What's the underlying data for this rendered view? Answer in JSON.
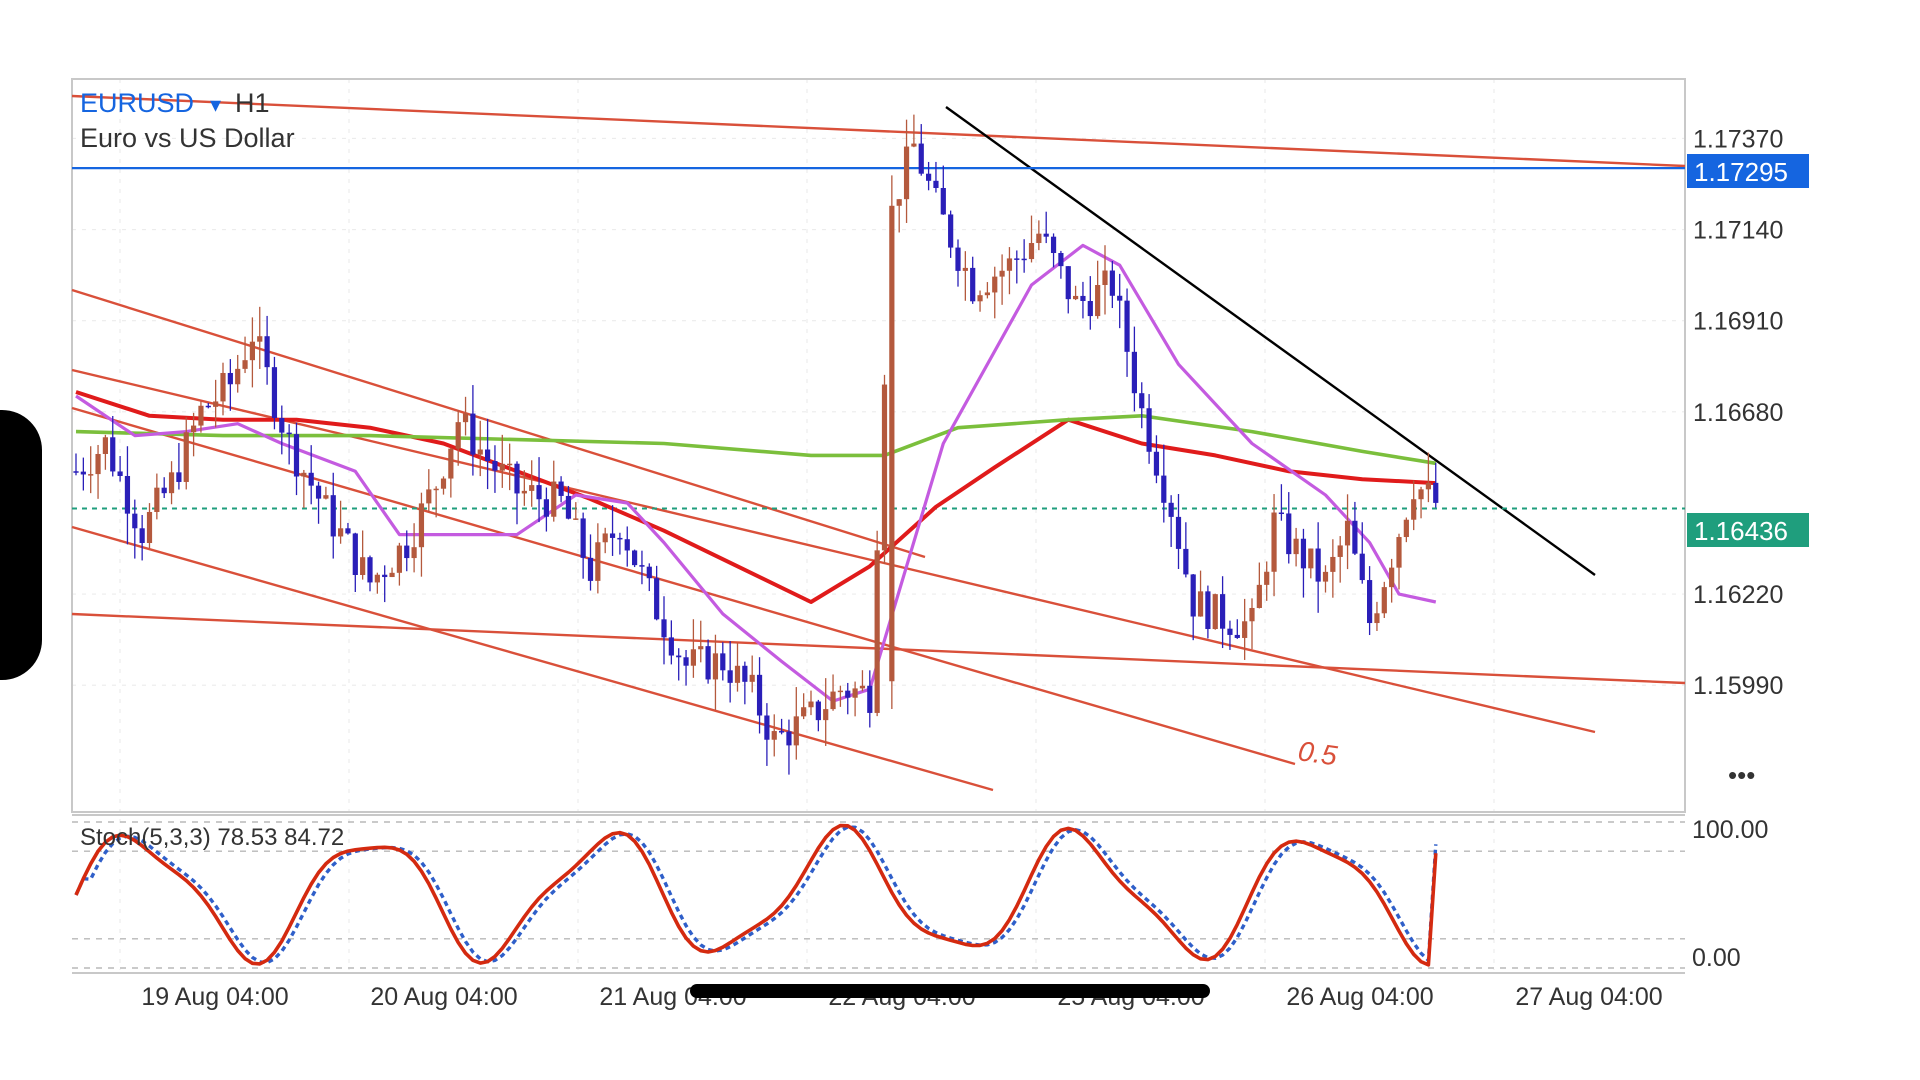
{
  "header": {
    "symbol": "EURUSD",
    "symbol_arrow": "▾",
    "timeframe": "H1",
    "description": "Euro vs US Dollar"
  },
  "price_axis": {
    "ticks": [
      "1.17370",
      "1.17140",
      "1.16910",
      "1.16680",
      "1.16220",
      "1.15990"
    ],
    "tick_values": [
      1.1737,
      1.1714,
      1.1691,
      1.1668,
      1.1622,
      1.1599
    ],
    "range": [
      1.1567,
      1.1752
    ],
    "more_label": "•••"
  },
  "price_labels": {
    "horizontal_line": {
      "text": "1.17295",
      "value": 1.17295,
      "color": "#1565e0"
    },
    "current_price": {
      "text": "1.16436",
      "value": 1.16436,
      "color": "#1f9e7d"
    }
  },
  "time_axis": {
    "labels": [
      "19 Aug 04:00",
      "20 Aug 04:00",
      "21 Aug 04:00",
      "22 Aug 04:00",
      "25 Aug 04:00",
      "26 Aug 04:00",
      "27 Aug 04:00"
    ]
  },
  "fib_label": "0.5",
  "stoch": {
    "label": "Stoch(5,3,3) 78.53 84.72",
    "ticks": [
      "100.00",
      "0.00"
    ],
    "levels": [
      80,
      20
    ]
  },
  "colors": {
    "bull_candle": "#b4593d",
    "bear_candle": "#2a1fb8",
    "ma_red": "#e01b1b",
    "ma_green": "#7bbf3c",
    "ma_violet": "#c45be0",
    "channel_lines": "#d9503a",
    "trend_line": "#000000",
    "stoch_main": "#d42a10",
    "stoch_signal": "#2f5fc9"
  },
  "chart_data": {
    "type": "candlestick",
    "title": "EURUSD H1",
    "subtitle": "Euro vs US Dollar",
    "ylim": [
      1.1567,
      1.1752
    ],
    "x_labels": [
      "19 Aug 04:00",
      "20 Aug 04:00",
      "21 Aug 04:00",
      "22 Aug 04:00",
      "25 Aug 04:00",
      "26 Aug 04:00",
      "27 Aug 04:00"
    ],
    "candle_count": 117,
    "close_path": [
      [
        0,
        1.1653
      ],
      [
        4,
        1.166
      ],
      [
        9,
        1.1638
      ],
      [
        13,
        1.165
      ],
      [
        17,
        1.1668
      ],
      [
        21,
        1.1675
      ],
      [
        24,
        1.1688
      ],
      [
        29,
        1.166
      ],
      [
        34,
        1.1643
      ],
      [
        40,
        1.1625
      ],
      [
        45,
        1.1635
      ],
      [
        49,
        1.165
      ],
      [
        52,
        1.1666
      ],
      [
        56,
        1.1656
      ],
      [
        60,
        1.1648
      ],
      [
        66,
        1.1645
      ],
      [
        70,
        1.1628
      ],
      [
        74,
        1.164
      ],
      [
        78,
        1.1622
      ],
      [
        83,
        1.1604
      ],
      [
        88,
        1.1605
      ],
      [
        92,
        1.1597
      ],
      [
        95,
        1.1585
      ],
      [
        100,
        1.1591
      ],
      [
        104,
        1.1598
      ],
      [
        108,
        1.1597
      ],
      [
        111,
        1.172
      ],
      [
        114,
        1.1735
      ],
      [
        117,
        1.172
      ],
      [
        122,
        1.17
      ],
      [
        127,
        1.1705
      ],
      [
        131,
        1.1713
      ],
      [
        136,
        1.1695
      ],
      [
        141,
        1.17
      ],
      [
        145,
        1.1668
      ],
      [
        149,
        1.1644
      ],
      [
        152,
        1.162
      ],
      [
        156,
        1.1616
      ],
      [
        160,
        1.1614
      ],
      [
        163,
        1.164
      ],
      [
        166,
        1.1633
      ],
      [
        170,
        1.1625
      ],
      [
        173,
        1.1638
      ],
      [
        176,
        1.1615
      ],
      [
        179,
        1.1632
      ],
      [
        182,
        1.165
      ],
      [
        185,
        1.1645
      ]
    ],
    "series": [
      {
        "name": "",
        "type": "line",
        "color": "#e01b1b",
        "points": [
          [
            0,
            1.1673
          ],
          [
            10,
            1.1667
          ],
          [
            20,
            1.1666
          ],
          [
            30,
            1.1666
          ],
          [
            40,
            1.1664
          ],
          [
            50,
            1.166
          ],
          [
            60,
            1.1653
          ],
          [
            70,
            1.1646
          ],
          [
            80,
            1.1638
          ],
          [
            90,
            1.1629
          ],
          [
            100,
            1.162
          ],
          [
            108,
            1.1629
          ],
          [
            117,
            1.1644
          ],
          [
            125,
            1.1654
          ],
          [
            135,
            1.1666
          ],
          [
            145,
            1.166
          ],
          [
            155,
            1.1657
          ],
          [
            165,
            1.1653
          ],
          [
            175,
            1.1651
          ],
          [
            185,
            1.165
          ]
        ]
      },
      {
        "name": "",
        "type": "line",
        "color": "#7bbf3c",
        "points": [
          [
            0,
            1.1663
          ],
          [
            20,
            1.1662
          ],
          [
            40,
            1.1662
          ],
          [
            60,
            1.1661
          ],
          [
            80,
            1.166
          ],
          [
            100,
            1.1657
          ],
          [
            110,
            1.1657
          ],
          [
            120,
            1.1664
          ],
          [
            135,
            1.1666
          ],
          [
            145,
            1.1667
          ],
          [
            160,
            1.1663
          ],
          [
            175,
            1.1658
          ],
          [
            185,
            1.1655
          ]
        ]
      },
      {
        "name": "",
        "type": "line",
        "color": "#c45be0",
        "points": [
          [
            0,
            1.1672
          ],
          [
            8,
            1.1662
          ],
          [
            15,
            1.1663
          ],
          [
            22,
            1.1665
          ],
          [
            28,
            1.166
          ],
          [
            38,
            1.1653
          ],
          [
            44,
            1.1637
          ],
          [
            52,
            1.1637
          ],
          [
            60,
            1.1637
          ],
          [
            68,
            1.1647
          ],
          [
            75,
            1.1645
          ],
          [
            80,
            1.1635
          ],
          [
            88,
            1.1617
          ],
          [
            96,
            1.1605
          ],
          [
            103,
            1.1595
          ],
          [
            108,
            1.1598
          ],
          [
            118,
            1.166
          ],
          [
            130,
            1.17
          ],
          [
            137,
            1.171
          ],
          [
            142,
            1.1705
          ],
          [
            150,
            1.168
          ],
          [
            160,
            1.166
          ],
          [
            170,
            1.1647
          ],
          [
            176,
            1.1635
          ],
          [
            180,
            1.1622
          ],
          [
            185,
            1.162
          ]
        ]
      }
    ],
    "horizontal_lines": [
      1.17295,
      1.16436
    ],
    "stochastic": {
      "params": [
        5,
        3,
        3
      ],
      "main": 78.53,
      "signal": 84.72,
      "range": [
        0,
        100
      ],
      "levels": [
        80,
        20
      ]
    }
  }
}
